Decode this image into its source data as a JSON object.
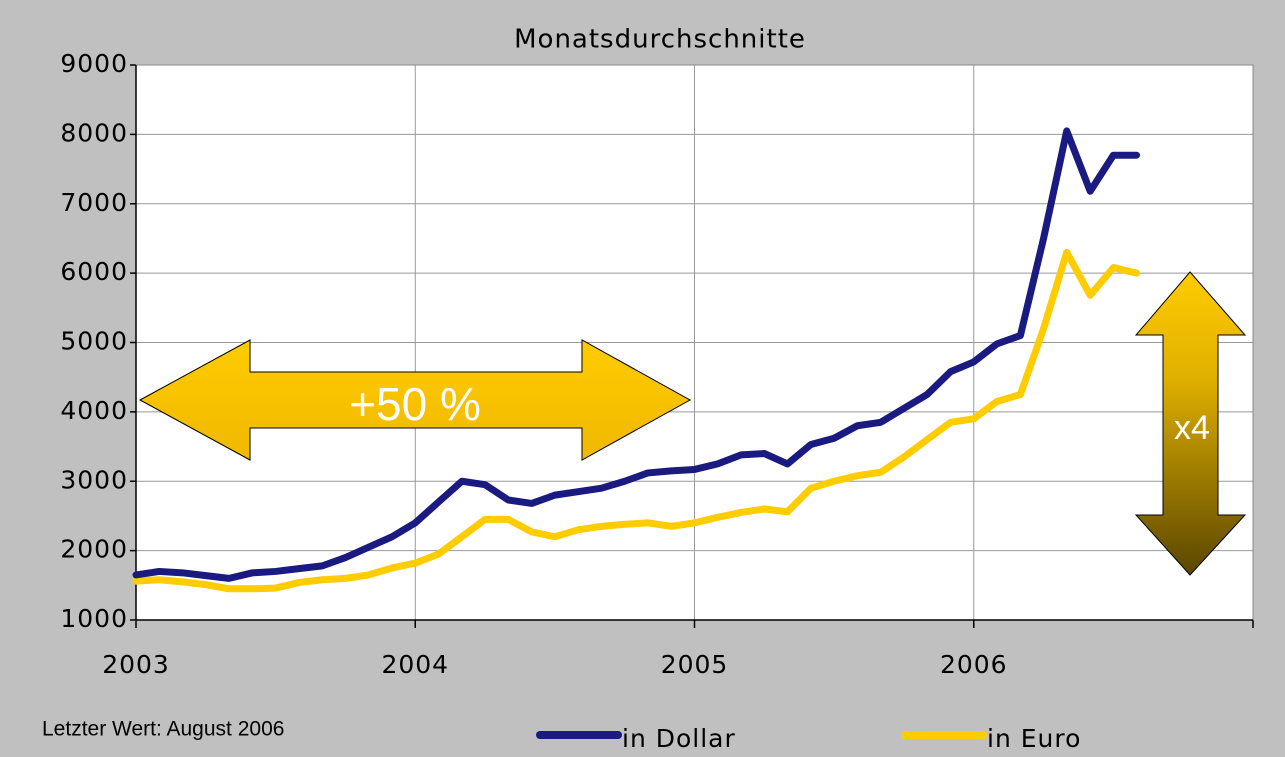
{
  "chart_data": {
    "type": "line",
    "title": "Monatsdurchschnitte",
    "x": [
      2003,
      2003.083,
      2003.167,
      2003.25,
      2003.333,
      2003.417,
      2003.5,
      2003.583,
      2003.667,
      2003.75,
      2003.833,
      2003.917,
      2004,
      2004.083,
      2004.167,
      2004.25,
      2004.333,
      2004.417,
      2004.5,
      2004.583,
      2004.667,
      2004.75,
      2004.833,
      2004.917,
      2005,
      2005.083,
      2005.167,
      2005.25,
      2005.333,
      2005.417,
      2005.5,
      2005.583,
      2005.667,
      2005.75,
      2005.833,
      2005.917,
      2006,
      2006.083,
      2006.167,
      2006.25,
      2006.333,
      2006.417,
      2006.5,
      2006.583
    ],
    "series": [
      {
        "name": "in Dollar",
        "color": "#1a1a80",
        "values": [
          1650,
          1700,
          1680,
          1640,
          1600,
          1680,
          1700,
          1740,
          1780,
          1900,
          2050,
          2200,
          2400,
          2700,
          3000,
          2950,
          2730,
          2680,
          2800,
          2850,
          2900,
          3000,
          3120,
          3150,
          3170,
          3250,
          3380,
          3400,
          3250,
          3530,
          3620,
          3800,
          3850,
          4050,
          4250,
          4580,
          4720,
          4980,
          5100,
          6500,
          8050,
          7180,
          7700,
          7700
        ]
      },
      {
        "name": "in Euro",
        "color": "#ffcc00",
        "values": [
          1560,
          1580,
          1550,
          1510,
          1450,
          1450,
          1460,
          1540,
          1580,
          1600,
          1650,
          1750,
          1820,
          1950,
          2200,
          2450,
          2450,
          2270,
          2200,
          2300,
          2350,
          2380,
          2400,
          2350,
          2400,
          2480,
          2550,
          2600,
          2560,
          2900,
          3000,
          3080,
          3130,
          3350,
          3600,
          3850,
          3900,
          4150,
          4250,
          5200,
          6300,
          5680,
          6080,
          6000
        ]
      }
    ],
    "xlim": [
      2003,
      2007
    ],
    "xticks": [
      2003,
      2004,
      2005,
      2006
    ],
    "ylim": [
      1000,
      9000
    ],
    "yticks": [
      1000,
      2000,
      3000,
      4000,
      5000,
      6000,
      7000,
      8000,
      9000
    ],
    "grid": true,
    "annotations": {
      "range": "+50 %",
      "factor": "x4",
      "note": "Letzter Wert: August 2006"
    }
  }
}
